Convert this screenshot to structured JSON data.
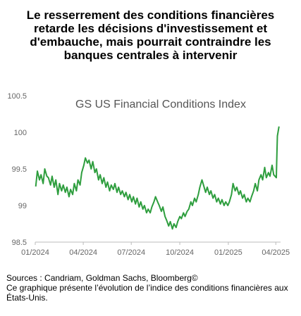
{
  "headline": "Le resserrement des conditions financières retarde les décisions d'investissement et d'embauche, mais pourrait contraindre les banques centrales à intervenir",
  "footer": {
    "sources": "Sources : Candriam, Goldman Sachs, Bloomberg©",
    "note": "Ce graphique présente l’évolution de l’indice des conditions financières aux États-Unis."
  },
  "chart_data": {
    "type": "line",
    "title": "GS US Financial Conditions Index",
    "xlabel": "",
    "ylabel": "",
    "ylim": [
      98.5,
      100.5
    ],
    "xlim": [
      "2024-01-01",
      "2025-04-10"
    ],
    "yticks": [
      "98.5",
      "99",
      "99.5",
      "100",
      "100.5"
    ],
    "xticks": [
      {
        "label": "01/2024",
        "date": "2024-01-01"
      },
      {
        "label": "04/2024",
        "date": "2024-04-01"
      },
      {
        "label": "07/2024",
        "date": "2024-07-01"
      },
      {
        "label": "10/2024",
        "date": "2024-10-01"
      },
      {
        "label": "01/2025",
        "date": "2025-01-01"
      },
      {
        "label": "04/2025",
        "date": "2025-04-01"
      }
    ],
    "grid": false,
    "color": "#2e9e3e",
    "series": [
      {
        "values": [
          [
            "2024-01-02",
            99.26
          ],
          [
            "2024-01-05",
            99.47
          ],
          [
            "2024-01-09",
            99.35
          ],
          [
            "2024-01-12",
            99.42
          ],
          [
            "2024-01-16",
            99.3
          ],
          [
            "2024-01-19",
            99.5
          ],
          [
            "2024-01-23",
            99.4
          ],
          [
            "2024-01-26",
            99.38
          ],
          [
            "2024-01-30",
            99.28
          ],
          [
            "2024-02-02",
            99.4
          ],
          [
            "2024-02-06",
            99.25
          ],
          [
            "2024-02-09",
            99.35
          ],
          [
            "2024-02-13",
            99.15
          ],
          [
            "2024-02-16",
            99.3
          ],
          [
            "2024-02-20",
            99.2
          ],
          [
            "2024-02-23",
            99.28
          ],
          [
            "2024-02-27",
            99.18
          ],
          [
            "2024-03-01",
            99.25
          ],
          [
            "2024-03-05",
            99.12
          ],
          [
            "2024-03-08",
            99.22
          ],
          [
            "2024-03-12",
            99.15
          ],
          [
            "2024-03-15",
            99.3
          ],
          [
            "2024-03-19",
            99.2
          ],
          [
            "2024-03-22",
            99.35
          ],
          [
            "2024-03-26",
            99.28
          ],
          [
            "2024-03-29",
            99.45
          ],
          [
            "2024-04-02",
            99.55
          ],
          [
            "2024-04-05",
            99.65
          ],
          [
            "2024-04-09",
            99.58
          ],
          [
            "2024-04-12",
            99.62
          ],
          [
            "2024-04-16",
            99.5
          ],
          [
            "2024-04-19",
            99.6
          ],
          [
            "2024-04-23",
            99.45
          ],
          [
            "2024-04-26",
            99.5
          ],
          [
            "2024-04-30",
            99.35
          ],
          [
            "2024-05-03",
            99.42
          ],
          [
            "2024-05-07",
            99.3
          ],
          [
            "2024-05-10",
            99.38
          ],
          [
            "2024-05-14",
            99.25
          ],
          [
            "2024-05-17",
            99.32
          ],
          [
            "2024-05-21",
            99.2
          ],
          [
            "2024-05-24",
            99.28
          ],
          [
            "2024-05-28",
            99.22
          ],
          [
            "2024-05-31",
            99.3
          ],
          [
            "2024-06-04",
            99.18
          ],
          [
            "2024-06-07",
            99.25
          ],
          [
            "2024-06-11",
            99.15
          ],
          [
            "2024-06-14",
            99.2
          ],
          [
            "2024-06-18",
            99.12
          ],
          [
            "2024-06-21",
            99.18
          ],
          [
            "2024-06-25",
            99.08
          ],
          [
            "2024-06-28",
            99.15
          ],
          [
            "2024-07-02",
            99.05
          ],
          [
            "2024-07-05",
            99.12
          ],
          [
            "2024-07-09",
            99.02
          ],
          [
            "2024-07-12",
            99.1
          ],
          [
            "2024-07-16",
            98.98
          ],
          [
            "2024-07-19",
            99.05
          ],
          [
            "2024-07-23",
            98.95
          ],
          [
            "2024-07-26",
            99.0
          ],
          [
            "2024-07-30",
            98.9
          ],
          [
            "2024-08-02",
            98.95
          ],
          [
            "2024-08-06",
            98.9
          ],
          [
            "2024-08-09",
            98.98
          ],
          [
            "2024-08-13",
            99.05
          ],
          [
            "2024-08-16",
            99.12
          ],
          [
            "2024-08-20",
            99.05
          ],
          [
            "2024-08-23",
            99.0
          ],
          [
            "2024-08-27",
            98.92
          ],
          [
            "2024-08-30",
            98.98
          ],
          [
            "2024-09-03",
            98.85
          ],
          [
            "2024-09-06",
            98.8
          ],
          [
            "2024-09-10",
            98.72
          ],
          [
            "2024-09-13",
            98.78
          ],
          [
            "2024-09-17",
            98.68
          ],
          [
            "2024-09-20",
            98.75
          ],
          [
            "2024-09-24",
            98.7
          ],
          [
            "2024-09-27",
            98.78
          ],
          [
            "2024-10-01",
            98.85
          ],
          [
            "2024-10-04",
            98.82
          ],
          [
            "2024-10-08",
            98.9
          ],
          [
            "2024-10-11",
            98.85
          ],
          [
            "2024-10-15",
            98.92
          ],
          [
            "2024-10-18",
            98.95
          ],
          [
            "2024-10-22",
            99.05
          ],
          [
            "2024-10-25",
            99.0
          ],
          [
            "2024-10-29",
            99.1
          ],
          [
            "2024-11-01",
            99.05
          ],
          [
            "2024-11-05",
            99.15
          ],
          [
            "2024-11-08",
            99.25
          ],
          [
            "2024-11-12",
            99.35
          ],
          [
            "2024-11-15",
            99.28
          ],
          [
            "2024-11-19",
            99.18
          ],
          [
            "2024-11-22",
            99.25
          ],
          [
            "2024-11-26",
            99.15
          ],
          [
            "2024-11-29",
            99.2
          ],
          [
            "2024-12-03",
            99.1
          ],
          [
            "2024-12-06",
            99.15
          ],
          [
            "2024-12-10",
            99.05
          ],
          [
            "2024-12-13",
            99.1
          ],
          [
            "2024-12-17",
            99.02
          ],
          [
            "2024-12-20",
            99.08
          ],
          [
            "2024-12-24",
            99.0
          ],
          [
            "2024-12-27",
            99.05
          ],
          [
            "2024-12-31",
            99.0
          ],
          [
            "2025-01-03",
            99.05
          ],
          [
            "2025-01-07",
            99.15
          ],
          [
            "2025-01-10",
            99.3
          ],
          [
            "2025-01-14",
            99.2
          ],
          [
            "2025-01-17",
            99.25
          ],
          [
            "2025-01-21",
            99.15
          ],
          [
            "2025-01-24",
            99.2
          ],
          [
            "2025-01-28",
            99.1
          ],
          [
            "2025-01-31",
            99.15
          ],
          [
            "2025-02-04",
            99.05
          ],
          [
            "2025-02-07",
            99.1
          ],
          [
            "2025-02-11",
            99.05
          ],
          [
            "2025-02-14",
            99.12
          ],
          [
            "2025-02-18",
            99.2
          ],
          [
            "2025-02-21",
            99.3
          ],
          [
            "2025-02-25",
            99.2
          ],
          [
            "2025-02-28",
            99.35
          ],
          [
            "2025-03-04",
            99.42
          ],
          [
            "2025-03-07",
            99.35
          ],
          [
            "2025-03-11",
            99.52
          ],
          [
            "2025-03-14",
            99.38
          ],
          [
            "2025-03-18",
            99.45
          ],
          [
            "2025-03-21",
            99.4
          ],
          [
            "2025-03-25",
            99.55
          ],
          [
            "2025-03-28",
            99.42
          ],
          [
            "2025-04-02",
            99.38
          ],
          [
            "2025-04-03",
            99.7
          ],
          [
            "2025-04-04",
            99.95
          ],
          [
            "2025-04-07",
            100.08
          ]
        ]
      }
    ]
  }
}
